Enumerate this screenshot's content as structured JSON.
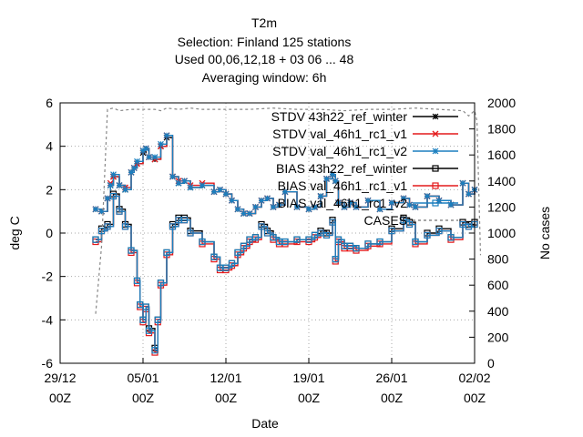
{
  "chart_data": {
    "type": "line",
    "title": [
      "T2m",
      "Selection: Finland     125 stations",
      "Used  00,06,12,18  + 03 06 ... 48",
      "Averaging window:  6h"
    ],
    "xlabel": "Date",
    "ylabel": "deg C",
    "y2label": "No cases",
    "x_ticks": [
      {
        "d": 0,
        "l1": "29/12",
        "l2": "00Z"
      },
      {
        "d": 7,
        "l1": "05/01",
        "l2": "00Z"
      },
      {
        "d": 14,
        "l1": "12/01",
        "l2": "00Z"
      },
      {
        "d": 21,
        "l1": "19/01",
        "l2": "00Z"
      },
      {
        "d": 28,
        "l1": "26/01",
        "l2": "00Z"
      },
      {
        "d": 35,
        "l1": "02/02",
        "l2": "00Z"
      }
    ],
    "xlim_days": [
      0,
      35
    ],
    "ylim": [
      -6,
      6
    ],
    "y_ticks": [
      "-6",
      "-4",
      "-2",
      "0",
      "2",
      "4",
      "6"
    ],
    "y2lim": [
      0,
      2000
    ],
    "y2_ticks": [
      "0",
      "200",
      "400",
      "600",
      "800",
      "1000",
      "1200",
      "1400",
      "1600",
      "1800",
      "2000"
    ],
    "grid": true,
    "legend_position": "top-right",
    "series": [
      {
        "name": "STDV 43h22_ref_winter",
        "color": "#000000",
        "marker": "star",
        "axis": "y",
        "x": [
          3,
          3.5,
          4,
          4.25,
          4.5,
          5,
          5.5,
          6,
          6.25,
          6.5,
          7,
          7.25,
          7.5,
          8,
          8.5,
          9,
          9.5,
          10,
          10.5,
          11,
          12,
          13,
          13.5,
          14,
          14.5,
          15,
          15.5,
          16,
          16.5,
          17,
          17.5,
          18,
          18.5,
          19,
          20,
          21,
          21.5,
          22,
          22.5,
          23,
          23.25,
          23.5,
          24,
          24.5,
          25,
          26,
          27,
          28,
          29,
          29.5,
          30,
          31,
          32,
          33,
          34,
          34.5,
          35
        ],
        "y": [
          1.1,
          1.0,
          1.6,
          2.2,
          2.6,
          2.2,
          2.0,
          2.8,
          3.0,
          3.2,
          3.7,
          3.9,
          3.5,
          3.4,
          4.0,
          4.4,
          2.6,
          2.3,
          2.4,
          2.1,
          2.2,
          1.9,
          2.0,
          1.8,
          1.5,
          1.1,
          0.9,
          0.9,
          1.2,
          1.5,
          1.6,
          1.2,
          1.3,
          1.9,
          1.2,
          1.1,
          1.2,
          1.7,
          2.5,
          2.7,
          2.4,
          1.4,
          1.2,
          1.4,
          1.2,
          1.5,
          1.1,
          1.4,
          1.6,
          1.3,
          1.2,
          1.7,
          1.5,
          1.3,
          2.3,
          1.8,
          2.0
        ]
      },
      {
        "name": "STDV val_46h1_rc1_v1",
        "color": "#e41a1c",
        "marker": "x",
        "axis": "y",
        "x": [
          3,
          3.5,
          4,
          4.25,
          4.5,
          5,
          5.5,
          6,
          6.25,
          6.5,
          7,
          7.25,
          7.5,
          8,
          8.5,
          9,
          9.5,
          10,
          10.5,
          11,
          12,
          13,
          13.5,
          14,
          14.5,
          15,
          15.5,
          16,
          16.5,
          17,
          17.5,
          18,
          18.5,
          19,
          20,
          21,
          21.5,
          22,
          22.5,
          23,
          23.25,
          23.5,
          24,
          24.5,
          25,
          26,
          27,
          28,
          29,
          29.5,
          30,
          31,
          32,
          33,
          34,
          34.5,
          35
        ],
        "y": [
          1.1,
          1.0,
          1.6,
          2.3,
          2.6,
          2.2,
          2.1,
          2.8,
          3.0,
          3.2,
          3.8,
          3.9,
          3.5,
          3.4,
          4.0,
          4.5,
          2.6,
          2.4,
          2.4,
          2.2,
          2.3,
          1.9,
          2.0,
          1.8,
          1.5,
          1.1,
          0.9,
          0.9,
          1.2,
          1.5,
          1.6,
          1.2,
          1.3,
          1.9,
          1.2,
          1.1,
          1.2,
          1.7,
          2.5,
          2.7,
          2.4,
          1.4,
          1.2,
          1.4,
          1.2,
          1.5,
          1.1,
          1.4,
          1.6,
          1.3,
          1.2,
          1.7,
          1.5,
          1.3,
          2.3,
          1.8,
          2.0
        ]
      },
      {
        "name": "STDV val_46h1_rc1_v2",
        "color": "#1b7fbf",
        "marker": "star",
        "axis": "y",
        "x": [
          3,
          3.5,
          4,
          4.25,
          4.5,
          5,
          5.5,
          6,
          6.25,
          6.5,
          7,
          7.25,
          7.5,
          8,
          8.5,
          9,
          9.5,
          10,
          10.5,
          11,
          12,
          13,
          13.5,
          14,
          14.5,
          15,
          15.5,
          16,
          16.5,
          17,
          17.5,
          18,
          18.5,
          19,
          20,
          21,
          21.5,
          22,
          22.5,
          23,
          23.25,
          23.5,
          24,
          24.5,
          25,
          26,
          27,
          28,
          29,
          29.5,
          30,
          31,
          32,
          33,
          34,
          34.5,
          35
        ],
        "y": [
          1.1,
          1.0,
          1.6,
          2.2,
          2.7,
          2.2,
          2.0,
          2.8,
          3.0,
          3.3,
          3.8,
          3.9,
          3.5,
          3.5,
          4.1,
          4.5,
          2.6,
          2.3,
          2.4,
          2.1,
          2.2,
          1.9,
          2.0,
          1.8,
          1.5,
          1.1,
          0.9,
          0.9,
          1.2,
          1.5,
          1.6,
          1.2,
          1.3,
          1.9,
          1.2,
          1.1,
          1.2,
          1.7,
          2.5,
          2.7,
          2.4,
          1.4,
          1.2,
          1.4,
          1.2,
          1.5,
          1.1,
          1.4,
          1.6,
          1.3,
          1.2,
          1.7,
          1.5,
          1.3,
          2.3,
          1.8,
          2.0
        ]
      },
      {
        "name": "BIAS 43h22_ref_winter",
        "color": "#000000",
        "marker": "square",
        "axis": "y",
        "x": [
          3,
          3.5,
          4,
          4.5,
          5,
          5.5,
          6,
          6.5,
          6.75,
          7,
          7.25,
          7.5,
          8,
          8.25,
          8.5,
          9,
          9.5,
          10,
          10.5,
          11,
          12,
          13,
          13.5,
          14,
          14.5,
          15,
          15.5,
          16,
          16.5,
          17,
          17.5,
          18,
          18.5,
          19,
          20,
          21,
          21.5,
          22,
          22.5,
          23,
          23.25,
          23.5,
          24,
          24.5,
          25,
          26,
          27,
          28,
          29,
          29.5,
          30,
          31,
          32,
          33,
          34,
          34.5,
          35
        ],
        "y": [
          -0.3,
          0.2,
          0.4,
          1.8,
          1.1,
          0.4,
          -0.8,
          -2.2,
          -3.3,
          -4.0,
          -3.4,
          -4.4,
          -5.3,
          -4.0,
          -2.3,
          -0.9,
          0.4,
          0.7,
          0.7,
          0.1,
          -0.4,
          -1.1,
          -1.6,
          -1.6,
          -1.4,
          -0.9,
          -0.6,
          -0.3,
          -0.2,
          0.4,
          0.1,
          -0.2,
          -0.4,
          -0.4,
          -0.3,
          -0.3,
          -0.1,
          0.1,
          0.0,
          0.6,
          -1.2,
          -0.3,
          -0.6,
          -0.6,
          -0.7,
          -0.5,
          -0.4,
          0.2,
          0.7,
          0.5,
          -0.4,
          0.0,
          0.2,
          -0.2,
          0.5,
          0.4,
          0.5
        ]
      },
      {
        "name": "BIAS val_46h1_rc1_v1",
        "color": "#e41a1c",
        "marker": "square",
        "axis": "y",
        "x": [
          3,
          3.5,
          4,
          4.5,
          5,
          5.5,
          6,
          6.5,
          6.75,
          7,
          7.25,
          7.5,
          8,
          8.25,
          8.5,
          9,
          9.5,
          10,
          10.5,
          11,
          12,
          13,
          13.5,
          14,
          14.5,
          15,
          15.5,
          16,
          16.5,
          17,
          17.5,
          18,
          18.5,
          19,
          20,
          21,
          21.5,
          22,
          22.5,
          23,
          23.25,
          23.5,
          24,
          24.5,
          25,
          26,
          27,
          28,
          29,
          29.5,
          30,
          31,
          32,
          33,
          34,
          34.5,
          35
        ],
        "y": [
          -0.4,
          0.1,
          0.3,
          1.7,
          1.0,
          0.3,
          -0.9,
          -2.3,
          -3.4,
          -4.1,
          -3.5,
          -4.6,
          -5.5,
          -4.1,
          -2.4,
          -1.0,
          0.3,
          0.6,
          0.6,
          0.0,
          -0.5,
          -1.2,
          -1.7,
          -1.7,
          -1.5,
          -1.0,
          -0.7,
          -0.4,
          -0.3,
          0.3,
          0.0,
          -0.3,
          -0.5,
          -0.5,
          -0.4,
          -0.4,
          -0.2,
          0.0,
          -0.1,
          0.5,
          -1.3,
          -0.4,
          -0.7,
          -0.7,
          -0.8,
          -0.6,
          -0.5,
          0.1,
          0.6,
          0.4,
          -0.5,
          -0.1,
          0.1,
          -0.3,
          0.4,
          0.3,
          0.4
        ]
      },
      {
        "name": "BIAS val_46h1_rc1_v2",
        "color": "#1b7fbf",
        "marker": "square",
        "axis": "y",
        "x": [
          3,
          3.5,
          4,
          4.5,
          5,
          5.5,
          6,
          6.5,
          6.75,
          7,
          7.25,
          7.5,
          8,
          8.25,
          8.5,
          9,
          9.5,
          10,
          10.5,
          11,
          12,
          13,
          13.5,
          14,
          14.5,
          15,
          15.5,
          16,
          16.5,
          17,
          17.5,
          18,
          18.5,
          19,
          20,
          21,
          21.5,
          22,
          22.5,
          23,
          23.25,
          23.5,
          24,
          24.5,
          25,
          26,
          27,
          28,
          29,
          29.5,
          30,
          31,
          32,
          33,
          34,
          34.5,
          35
        ],
        "y": [
          -0.3,
          0.1,
          0.3,
          1.7,
          1.0,
          0.3,
          -0.8,
          -2.2,
          -3.3,
          -4.0,
          -3.4,
          -4.5,
          -5.4,
          -4.0,
          -2.3,
          -0.9,
          0.3,
          0.6,
          0.6,
          0.0,
          -0.4,
          -1.1,
          -1.6,
          -1.6,
          -1.4,
          -0.9,
          -0.6,
          -0.3,
          -0.2,
          0.3,
          0.0,
          -0.2,
          -0.4,
          -0.4,
          -0.3,
          -0.3,
          -0.1,
          0.0,
          -0.1,
          0.5,
          -1.2,
          -0.3,
          -0.6,
          -0.6,
          -0.7,
          -0.5,
          -0.4,
          0.1,
          0.6,
          0.4,
          -0.4,
          -0.1,
          0.1,
          -0.2,
          0.4,
          0.3,
          0.4
        ]
      },
      {
        "name": "CASES",
        "color": "#888888",
        "marker": "none",
        "axis": "y2",
        "dashed": true,
        "x": [
          3,
          3.5,
          4,
          4.5,
          5,
          6,
          7,
          7.5,
          8,
          8.5,
          9,
          10,
          11,
          12,
          14,
          16,
          18,
          20,
          22,
          24,
          26,
          28,
          30,
          32,
          34,
          34.5,
          35,
          35.2,
          35.5
        ],
        "y": [
          380,
          900,
          1950,
          1960,
          1940,
          1950,
          1950,
          1950,
          1950,
          1940,
          1960,
          1950,
          1960,
          1950,
          1950,
          1950,
          1960,
          1950,
          1950,
          1940,
          1950,
          1950,
          1960,
          1950,
          1940,
          1900,
          1940,
          1860,
          830
        ]
      }
    ]
  }
}
